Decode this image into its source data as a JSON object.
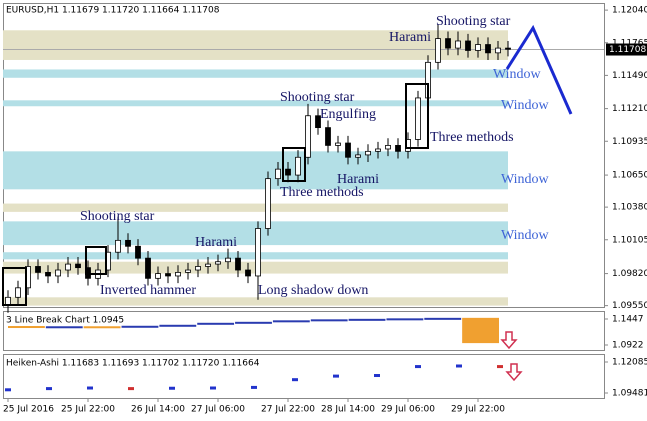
{
  "chart_data": [
    {
      "type": "candlestick",
      "title": "EURUSD,H1  1.11679 1.11720 1.11664 1.11708",
      "categories": [
        "25 Jul 2016",
        null,
        null,
        null,
        null,
        null,
        null,
        null,
        "25 Jul 22:00",
        null,
        null,
        null,
        null,
        null,
        null,
        "26 Jul 14:00",
        null,
        null,
        null,
        null,
        null,
        "27 Jul 06:00",
        null,
        null,
        null,
        null,
        null,
        null,
        "27 Jul 22:00",
        null,
        null,
        null,
        null,
        null,
        "28 Jul 14:00",
        null,
        null,
        null,
        null,
        null,
        "29 Jul 06:00",
        null,
        null,
        null,
        null,
        null,
        null,
        "29 Jul 22:00",
        null,
        null,
        null
      ],
      "open": [
        1.0955,
        1.0962,
        1.097,
        1.0988,
        1.0983,
        1.098,
        1.0985,
        1.099,
        1.0987,
        1.0978,
        1.0985,
        1.1,
        1.101,
        1.1005,
        1.0995,
        1.0978,
        1.0982,
        1.098,
        1.0983,
        1.0985,
        1.0988,
        1.099,
        1.0992,
        1.0995,
        1.0985,
        1.098,
        1.102,
        1.1062,
        1.107,
        1.1065,
        1.108,
        1.1115,
        1.1105,
        1.109,
        1.1092,
        1.108,
        1.1082,
        1.1085,
        1.1087,
        1.109,
        1.1085,
        1.1095,
        1.113,
        1.116,
        1.118,
        1.1172,
        1.1178,
        1.117,
        1.1175,
        1.1168,
        1.1172
      ],
      "high": [
        1.0968,
        1.0976,
        1.0994,
        1.0994,
        1.0989,
        1.0991,
        1.0996,
        1.0996,
        1.0993,
        1.0991,
        1.1006,
        1.103,
        1.1016,
        1.1011,
        1.1001,
        1.0988,
        1.0988,
        1.0989,
        1.0991,
        1.0994,
        1.0996,
        1.0998,
        1.1003,
        1.1001,
        1.0991,
        1.1026,
        1.1068,
        1.1076,
        1.1076,
        1.1086,
        1.1125,
        1.1121,
        1.1111,
        1.1098,
        1.1098,
        1.1088,
        1.1091,
        1.1093,
        1.1096,
        1.1096,
        1.1101,
        1.1136,
        1.1166,
        1.1192,
        1.1186,
        1.1186,
        1.1184,
        1.1181,
        1.1181,
        1.1178,
        1.1178
      ],
      "low": [
        1.0949,
        1.0956,
        1.0964,
        1.0977,
        1.0974,
        1.0974,
        1.0979,
        1.0981,
        1.0972,
        1.0972,
        1.0979,
        1.0994,
        1.0999,
        1.0989,
        1.0972,
        1.0972,
        1.0974,
        1.0974,
        1.0977,
        1.0979,
        1.0982,
        1.0984,
        1.0986,
        1.0979,
        1.0974,
        1.096,
        1.1014,
        1.1056,
        1.1059,
        1.1059,
        1.1074,
        1.1099,
        1.1084,
        1.1084,
        1.1074,
        1.1074,
        1.1076,
        1.1079,
        1.1081,
        1.1079,
        1.1079,
        1.1089,
        1.1124,
        1.1154,
        1.1166,
        1.1166,
        1.1164,
        1.1164,
        1.1162,
        1.1162,
        1.1165
      ],
      "close": [
        1.0962,
        1.097,
        1.0988,
        1.0983,
        1.098,
        1.0985,
        1.099,
        1.0987,
        1.0978,
        1.0985,
        1.1,
        1.101,
        1.1005,
        1.0995,
        1.0978,
        1.0982,
        1.098,
        1.0983,
        1.0985,
        1.0988,
        1.099,
        1.0992,
        1.0995,
        1.0985,
        1.098,
        1.102,
        1.1062,
        1.107,
        1.1065,
        1.108,
        1.1115,
        1.1105,
        1.109,
        1.1092,
        1.108,
        1.1082,
        1.1085,
        1.1087,
        1.109,
        1.1085,
        1.1095,
        1.113,
        1.116,
        1.118,
        1.1172,
        1.1178,
        1.117,
        1.1175,
        1.1168,
        1.1172,
        1.1171
      ],
      "ylim": [
        1.0953,
        1.121
      ],
      "yticks": [
        {
          "value": 1.1204,
          "label": "1.12040"
        },
        1.11765,
        {
          "value": 1.1149,
          "label": "1.11490"
        },
        {
          "value": 1.1121,
          "label": "1.11210"
        },
        1.10935,
        {
          "value": 1.1065,
          "label": "1.10650"
        },
        {
          "value": 1.1038,
          "label": "1.10380"
        },
        1.10105,
        {
          "value": 1.0982,
          "label": "1.09820"
        },
        {
          "value": 1.0955,
          "label": "1.09550"
        }
      ],
      "last_price": 1.11708,
      "zones": [
        {
          "lo": 1.1162,
          "hi": 1.1187,
          "color": "#e4e1c6"
        },
        {
          "lo": 1.1147,
          "hi": 1.1154,
          "color": "#b3dfe6"
        },
        {
          "lo": 1.1123,
          "hi": 1.1128,
          "color": "#b3dfe6"
        },
        {
          "lo": 1.1053,
          "hi": 1.1085,
          "color": "#b3dfe6"
        },
        {
          "lo": 1.1034,
          "hi": 1.1041,
          "color": "#e4e1c6"
        },
        {
          "lo": 1.1006,
          "hi": 1.1026,
          "color": "#b3dfe6"
        },
        {
          "lo": 1.0994,
          "hi": 1.1,
          "color": "#b3dfe6"
        },
        {
          "lo": 1.0982,
          "hi": 1.0992,
          "color": "#e4e1c6"
        },
        {
          "lo": 1.0955,
          "hi": 1.0962,
          "color": "#e4e1c6"
        }
      ],
      "annotations": [
        "Harami",
        "Shooting star",
        "Window",
        "Window",
        "Shooting star",
        "Engulfing",
        "Three methods",
        "Harami",
        "Three methods",
        "Window",
        "Shooting star",
        "Window",
        "Harami",
        "Inverted hammer",
        "Long shadow down"
      ]
    },
    {
      "type": "line-break",
      "title": "3 Line Break Chart 1.0945",
      "values": [
        1.1305,
        1.129,
        1.13,
        1.128,
        1.131,
        1.133,
        1.137,
        1.139,
        1.142,
        1.144,
        1.145,
        1.146,
        1.147,
        1.096
      ],
      "up_color": "#2a3bb0",
      "down_color": "#f0a030",
      "ylim": [
        1.0821,
        1.1588
      ],
      "yticks": [
        1.1447,
        1.0922
      ]
    },
    {
      "type": "heiken-ashi",
      "title": "Heiken-Ashi 1.11683 1.11693 1.11702 1.11720 1.11664",
      "values": [
        1.0975,
        1.0985,
        1.099,
        1.0985,
        1.0988,
        1.099,
        1.0995,
        1.106,
        1.109,
        1.1095,
        1.117,
        1.1175,
        1.117
      ],
      "up_color": "#2233cc",
      "down_color": "#d03030",
      "ylim": [
        1.09061,
        1.12673
      ],
      "yticks": [
        1.12085,
        1.09481
      ]
    }
  ]
}
